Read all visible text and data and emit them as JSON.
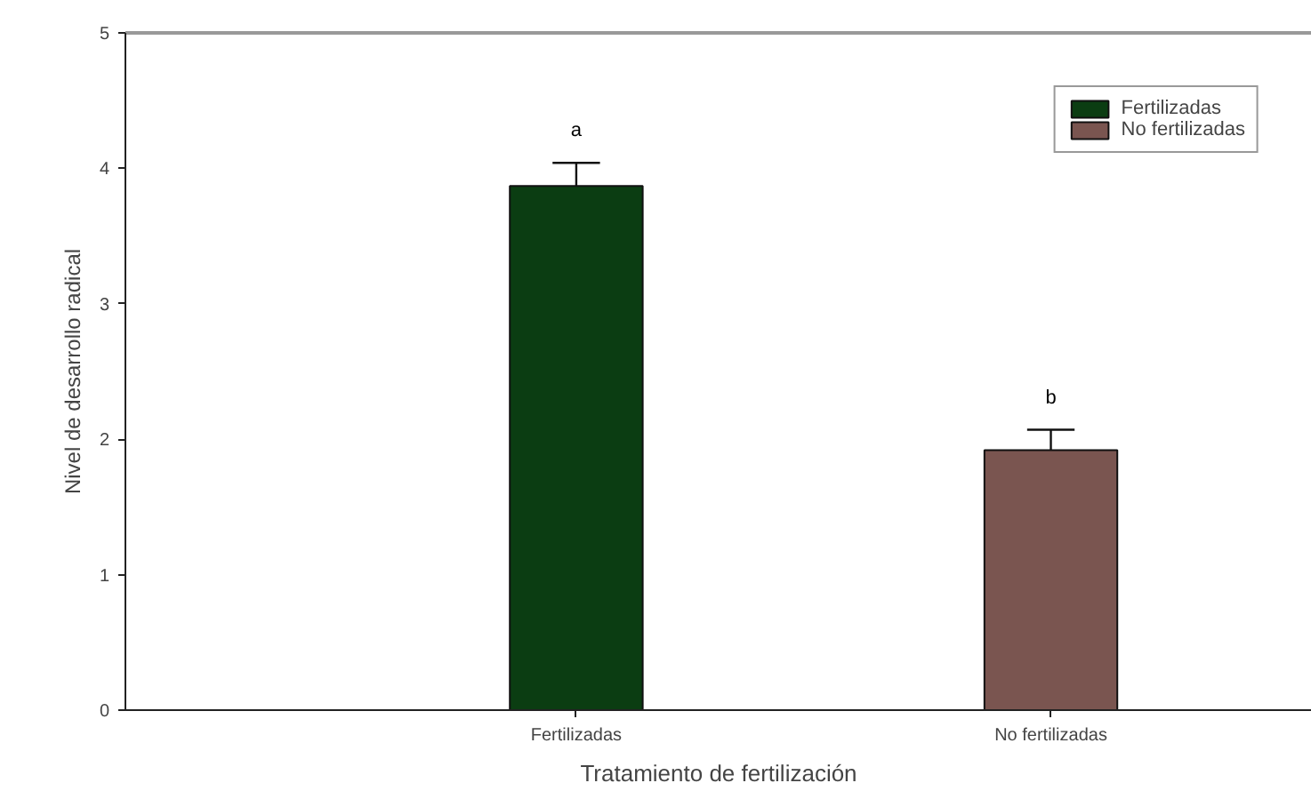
{
  "chart_data": {
    "type": "bar",
    "xlabel": "Tratamiento de fertilización",
    "ylabel": "Nivel de desarrollo radical",
    "categories": [
      "Fertilizadas",
      "No fertilizadas"
    ],
    "series": [
      {
        "name": "Fertilizadas",
        "color": "#0b3d12",
        "values": [
          3.87,
          null
        ],
        "errors": [
          0.17,
          null
        ]
      },
      {
        "name": "No fertilizadas",
        "color": "#7a5550",
        "values": [
          null,
          1.92
        ],
        "errors": [
          null,
          0.15
        ]
      }
    ],
    "ylim": [
      0,
      5
    ],
    "yticks": [
      0,
      1,
      2,
      3,
      4,
      5
    ],
    "grid": false,
    "legend": "top right",
    "annotations": [
      "a",
      "b"
    ]
  }
}
